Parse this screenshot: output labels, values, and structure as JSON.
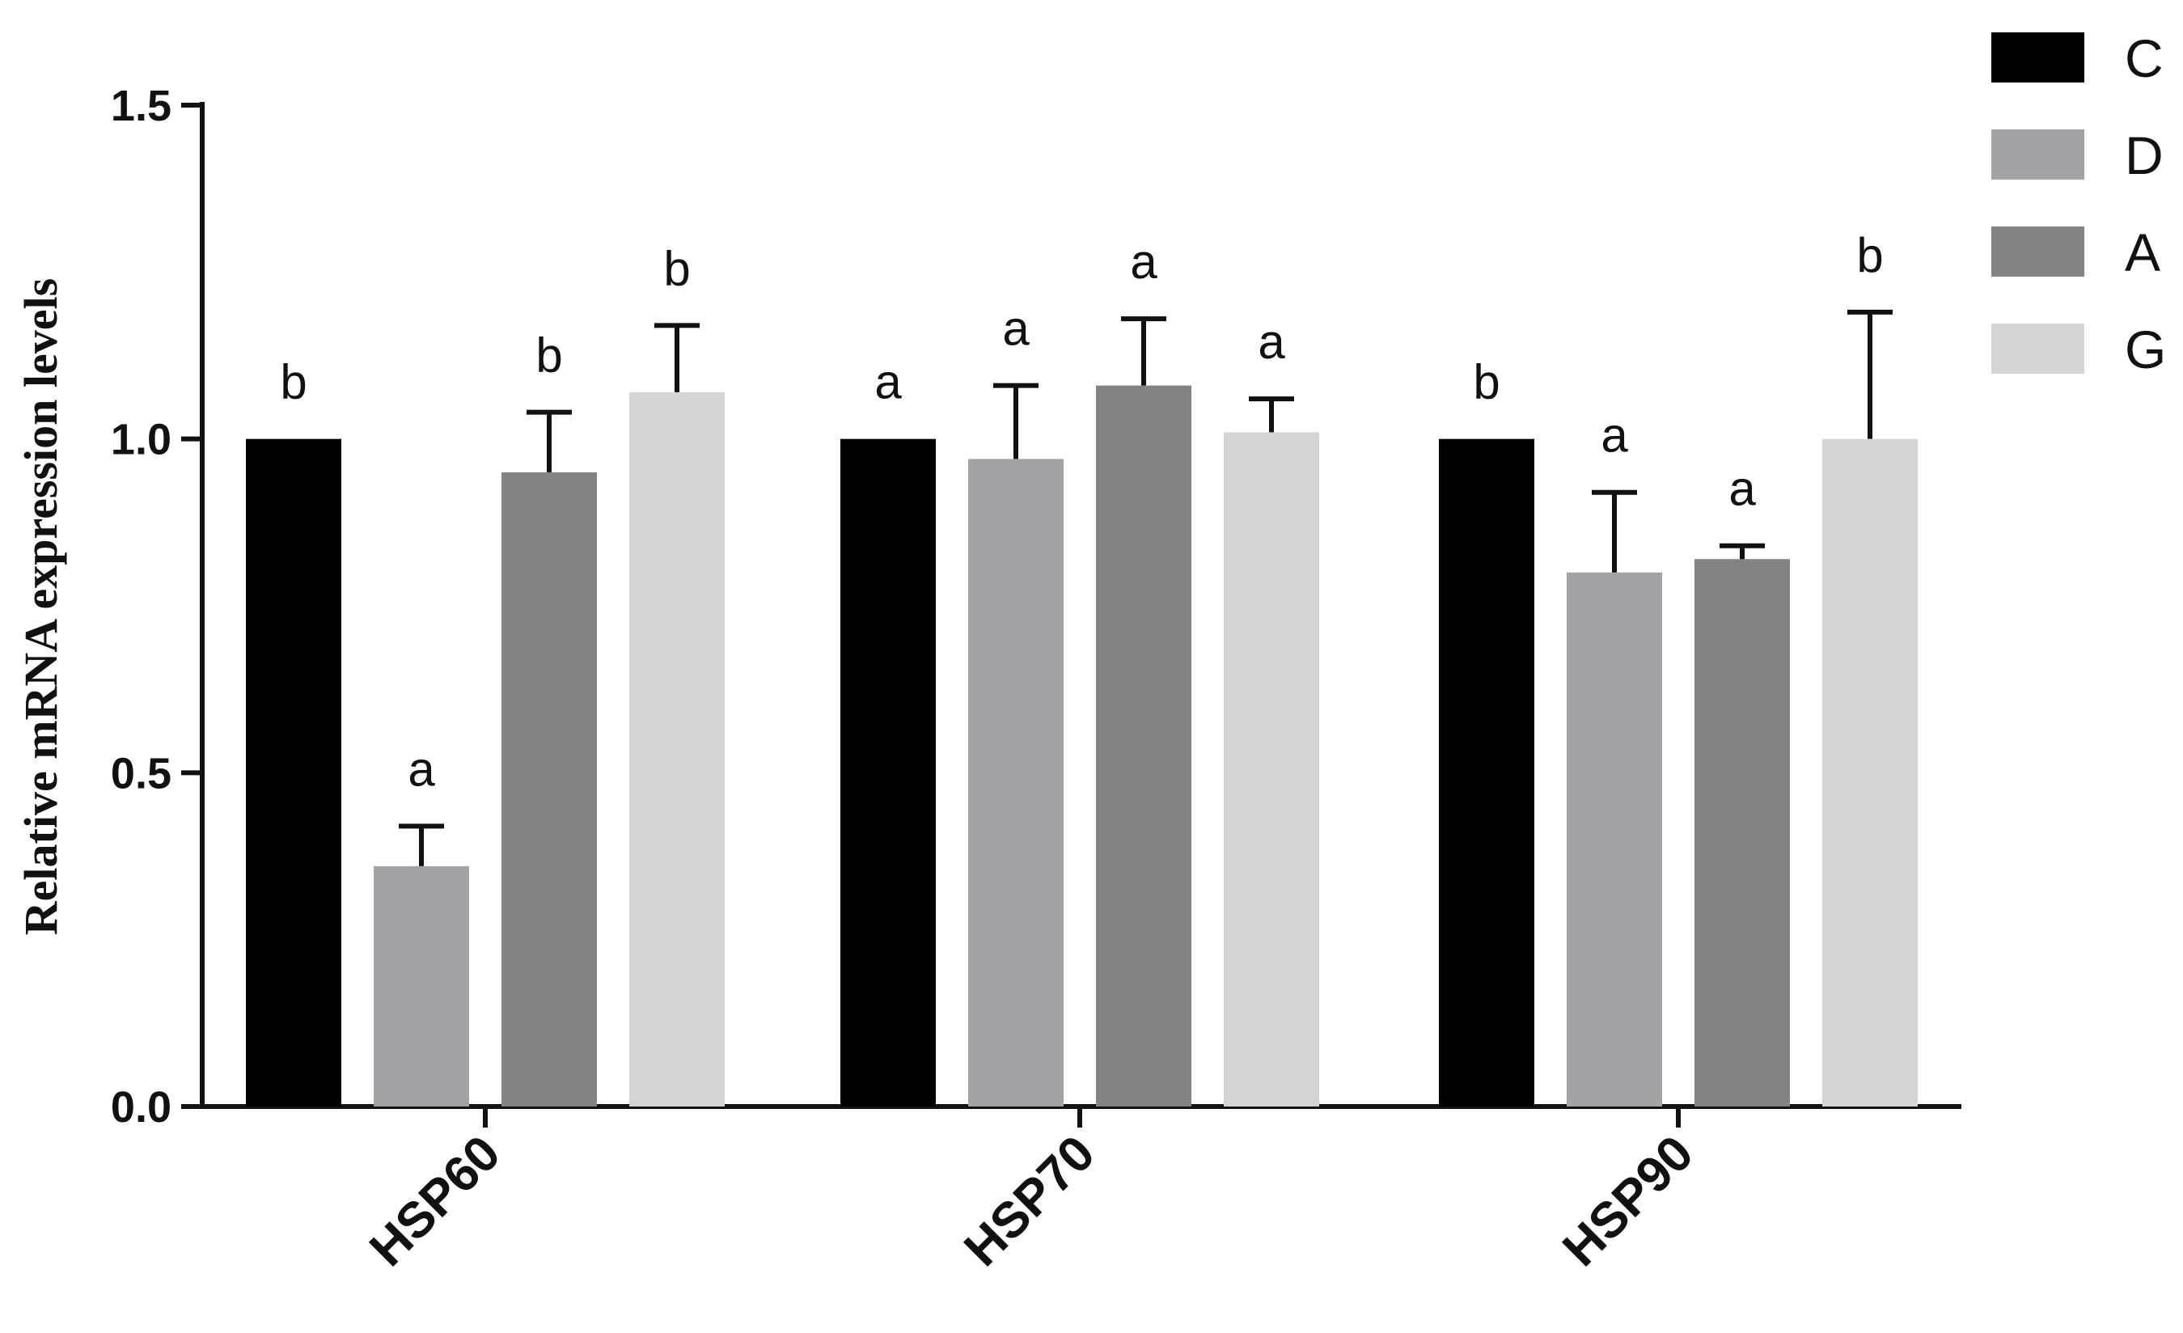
{
  "chart_data": {
    "type": "bar",
    "ylabel": "Relative mRNA expression levels",
    "xlabel": "",
    "ylim": [
      0,
      1.5
    ],
    "yticks": [
      "0.0",
      "0.5",
      "1.0",
      "1.5"
    ],
    "categories": [
      "HSP60",
      "HSP70",
      "HSP90"
    ],
    "legend_position": "top-right",
    "grid": false,
    "series": [
      {
        "name": "C",
        "color": "#000000",
        "values": [
          1.0,
          1.0,
          1.0
        ],
        "errors": [
          0.0,
          0.0,
          0.0
        ],
        "labels": [
          "b",
          "a",
          "b"
        ]
      },
      {
        "name": "D",
        "color": "#a3a2a6",
        "values": [
          0.36,
          0.97,
          0.8
        ],
        "errors": [
          0.06,
          0.11,
          0.12
        ],
        "labels": [
          "a",
          "a",
          "a"
        ]
      },
      {
        "name": "A",
        "color": "#838383",
        "values": [
          0.95,
          1.08,
          0.82
        ],
        "errors": [
          0.09,
          0.1,
          0.02
        ],
        "labels": [
          "b",
          "a",
          "a"
        ]
      },
      {
        "name": "G",
        "color": "#d5d5d5",
        "values": [
          1.07,
          1.01,
          1.0
        ],
        "errors": [
          0.1,
          0.05,
          0.19
        ],
        "labels": [
          "b",
          "a",
          "b"
        ]
      }
    ]
  }
}
